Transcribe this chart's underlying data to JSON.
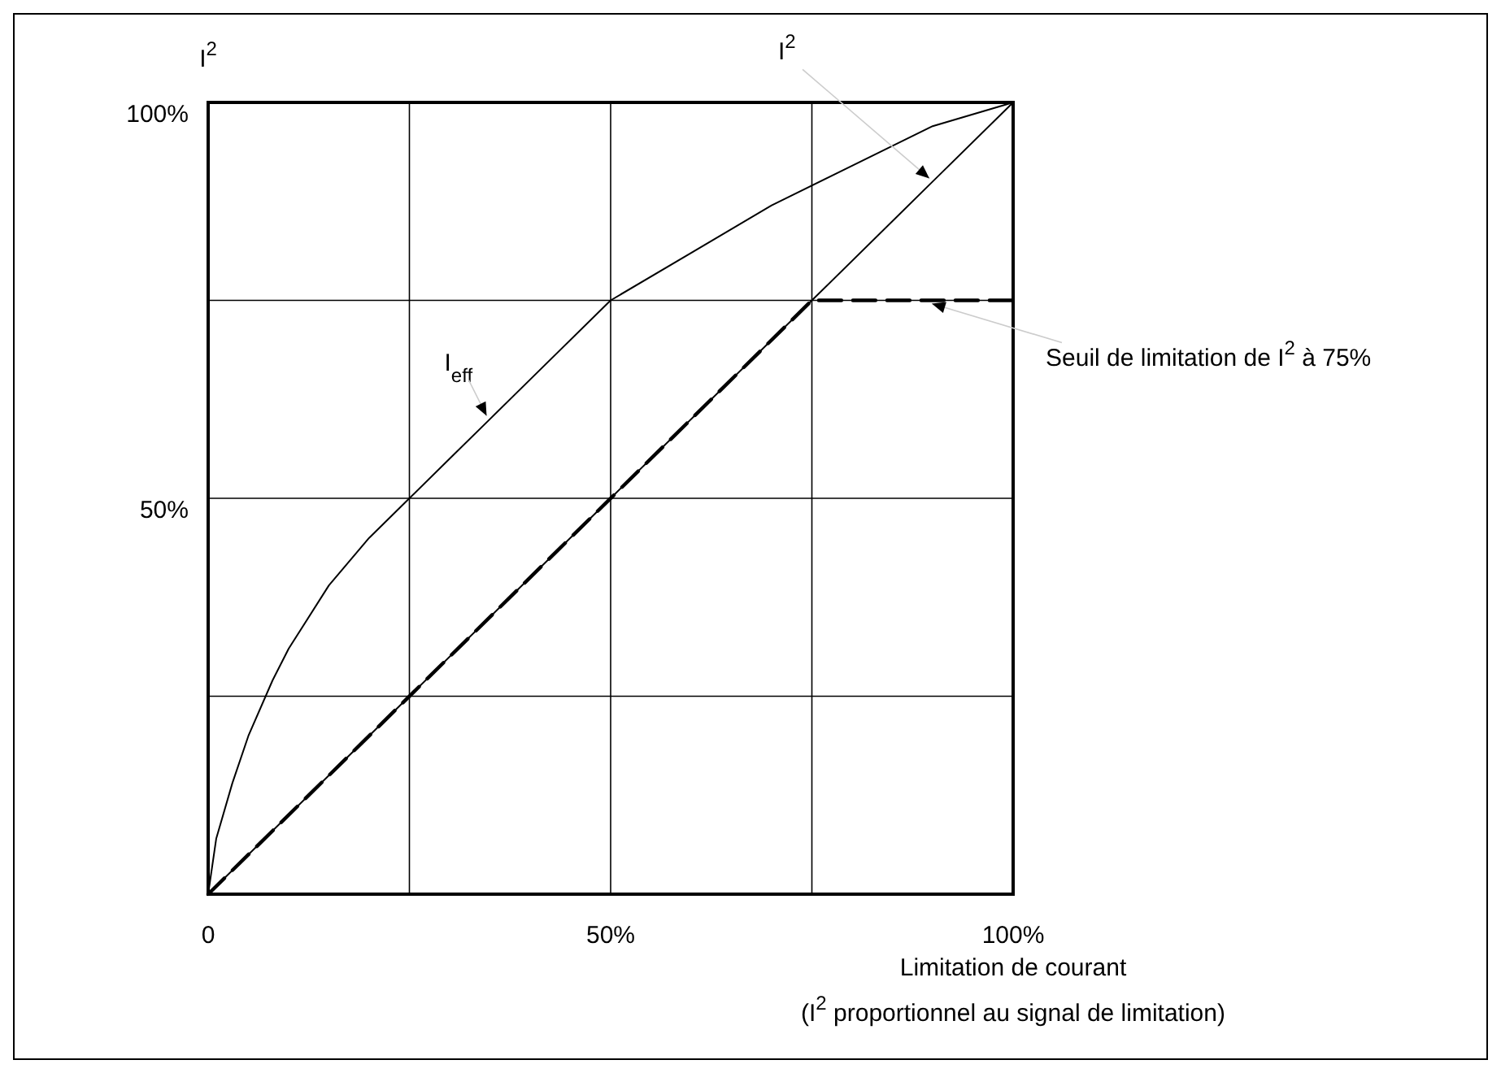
{
  "chart_data": {
    "type": "line",
    "ylabel": "I$^{2}$",
    "xlabel": "Limitation de courant",
    "xlim": [
      0,
      100
    ],
    "ylim": [
      0,
      100
    ],
    "xticks": [
      {
        "value": 0,
        "label": "0"
      },
      {
        "value": 25,
        "label": null
      },
      {
        "value": 50,
        "label": "50%"
      },
      {
        "value": 75,
        "label": null
      },
      {
        "value": 100,
        "label": "100%"
      }
    ],
    "yticks": [
      {
        "value": 25,
        "label": null
      },
      {
        "value": 50,
        "label": "50%"
      },
      {
        "value": 75,
        "label": null
      },
      {
        "value": 100,
        "label": "100%"
      }
    ],
    "grid": true,
    "marker": "none",
    "legend": false,
    "series": [
      {
        "name": "I$_{eff}$",
        "color": "#000000",
        "x": [
          0,
          1,
          3,
          5,
          8,
          10,
          15,
          20,
          25,
          30,
          35,
          40,
          50,
          60,
          70,
          80,
          90,
          100
        ],
        "values": [
          0,
          7,
          14,
          20,
          27,
          31,
          39,
          45,
          50,
          55,
          60,
          65,
          75,
          81,
          87,
          92,
          97,
          100
        ],
        "line_style": "solid"
      },
      {
        "name": "I$^{2}$",
        "color": "#000000",
        "x": [
          0,
          25,
          50,
          75,
          90,
          100
        ],
        "values": [
          0,
          25,
          50,
          75,
          90,
          100
        ],
        "line_style": "solid"
      },
      {
        "color": "#000000",
        "x": [
          0,
          75,
          100
        ],
        "values": [
          0,
          75,
          75
        ],
        "line_style": "dashed"
      }
    ],
    "annotations": [
      {
        "text": "Seuil de limitation de I$^{2}$ à 75%",
        "x": 100,
        "y": 75
      },
      "(I$^{2}$ proportionnel au signal de limitation)"
    ]
  }
}
